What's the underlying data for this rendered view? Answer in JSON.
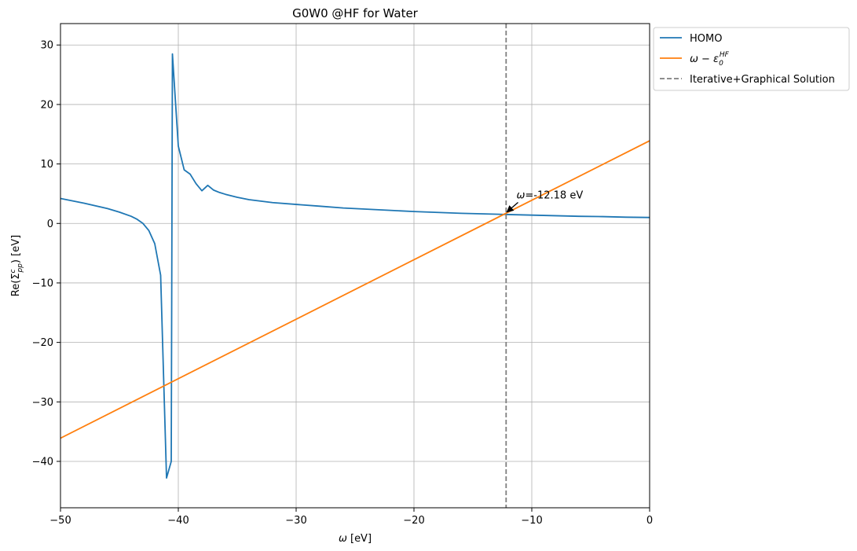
{
  "chart_data": {
    "type": "line",
    "title": "G0W0 @HF for Water",
    "xlabel": "ω [eV]",
    "ylabel": "Re(Σc pp) [eV]",
    "ylabel_parts": {
      "pre": "Re(Σ",
      "sup": "c",
      "sub": "pp",
      "post": ") [eV]"
    },
    "xlim": [
      -50,
      0
    ],
    "ylim": [
      -47.8,
      33.6
    ],
    "grid": true,
    "legend_position": "outside-top-right",
    "x_ticks": [
      {
        "value": -50,
        "label": "−50"
      },
      {
        "value": -40,
        "label": "−40"
      },
      {
        "value": -30,
        "label": "−30"
      },
      {
        "value": -20,
        "label": "−20"
      },
      {
        "value": -10,
        "label": "−10"
      },
      {
        "value": 0,
        "label": "0"
      }
    ],
    "y_ticks": [
      {
        "value": 30,
        "label": "30"
      },
      {
        "value": 20,
        "label": "20"
      },
      {
        "value": 10,
        "label": "10"
      },
      {
        "value": 0,
        "label": "0"
      },
      {
        "value": -10,
        "label": "−10"
      },
      {
        "value": -20,
        "label": "−20"
      },
      {
        "value": -30,
        "label": "−30"
      },
      {
        "value": -40,
        "label": "−40"
      }
    ],
    "series": [
      {
        "name": "HOMO",
        "color": "#1f77b4",
        "x": [
          -50,
          -48,
          -46,
          -45,
          -44,
          -43.5,
          -43,
          -42.5,
          -42,
          -41.5,
          -41,
          -40.6,
          -40.5,
          -40.0,
          -39.5,
          -39.0,
          -38.5,
          -38.0,
          -37.5,
          -37.0,
          -36.5,
          -36,
          -35,
          -34,
          -32,
          -30,
          -28,
          -26,
          -24,
          -22,
          -20,
          -18,
          -16,
          -14,
          -12,
          -10,
          -8,
          -6,
          -4,
          -2,
          0
        ],
        "y": [
          4.2,
          3.4,
          2.5,
          1.9,
          1.2,
          0.7,
          0.0,
          -1.2,
          -3.4,
          -8.7,
          -42.8,
          -40.0,
          28.5,
          13.0,
          9.0,
          8.3,
          6.7,
          5.5,
          6.4,
          5.6,
          5.2,
          4.9,
          4.4,
          4.0,
          3.5,
          3.2,
          2.9,
          2.6,
          2.4,
          2.2,
          2.0,
          1.85,
          1.7,
          1.6,
          1.5,
          1.4,
          1.3,
          1.2,
          1.15,
          1.05,
          1.0
        ]
      },
      {
        "name": "ω − ε0 HF",
        "name_parts": {
          "pre": "ω − ε",
          "sub": "0",
          "sup": "HF"
        },
        "color": "#ff7f0e",
        "x": [
          -50,
          0
        ],
        "y": [
          -36.1,
          13.9
        ]
      },
      {
        "name": "Iterative+Graphical Solution",
        "color": "#7f7f7f",
        "dashed": true,
        "vertical_line_x": -12.18
      }
    ],
    "annotation": {
      "text": "ω=-12.18 eV",
      "text_parts": {
        "italic": "ω",
        "rest": "=-12.18 eV"
      },
      "point": [
        -12.18,
        1.78
      ],
      "text_at": [
        -11.3,
        4.2
      ]
    }
  }
}
